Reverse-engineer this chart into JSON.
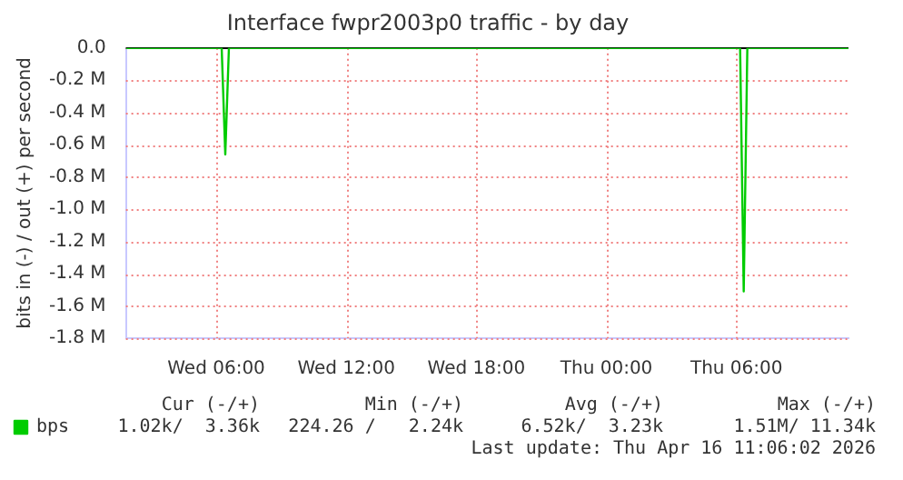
{
  "chart_data": {
    "type": "line",
    "title": "Interface fwpr2003p0 traffic - by day",
    "ylabel": "bits in (-) / out (+) per second",
    "x": [
      "2026-04-15T01:50",
      "2026-04-15T06:15",
      "2026-04-15T06:25",
      "2026-04-15T06:35",
      "2026-04-16T06:10",
      "2026-04-16T06:20",
      "2026-04-16T06:30",
      "2026-04-16T11:10"
    ],
    "series": [
      {
        "name": "bps",
        "color": "#00cc00",
        "values": [
          0,
          0,
          -0.66,
          0,
          0,
          -1.51,
          0,
          0
        ]
      }
    ],
    "xlim": [
      "2026-04-15T01:50",
      "2026-04-16T11:10"
    ],
    "xticks": [
      {
        "value": "2026-04-15T06:00",
        "label": "Wed 06:00"
      },
      {
        "value": "2026-04-15T12:00",
        "label": "Wed 12:00"
      },
      {
        "value": "2026-04-15T18:00",
        "label": "Wed 18:00"
      },
      {
        "value": "2026-04-16T00:00",
        "label": "Thu 00:00"
      },
      {
        "value": "2026-04-16T06:00",
        "label": "Thu 06:00"
      }
    ],
    "ylim": [
      -1.8,
      0
    ],
    "yticks": [
      {
        "value": 0,
        "label": "0.0"
      },
      {
        "value": -0.2,
        "label": "-0.2 M"
      },
      {
        "value": -0.4,
        "label": "-0.4 M"
      },
      {
        "value": -0.6,
        "label": "-0.6 M"
      },
      {
        "value": -0.8,
        "label": "-0.8 M"
      },
      {
        "value": -1.0,
        "label": "-1.0 M"
      },
      {
        "value": -1.2,
        "label": "-1.2 M"
      },
      {
        "value": -1.4,
        "label": "-1.4 M"
      },
      {
        "value": -1.6,
        "label": "-1.6 M"
      },
      {
        "value": -1.8,
        "label": "-1.8 M"
      }
    ],
    "grid": true,
    "legend": "bottom left",
    "marker": "none",
    "line_style": "solid",
    "annotations": [
      "Cur (-/+)",
      "Min (-/+)",
      "Avg (-/+)",
      "Max (-/+)",
      "1.02k/  3.36k",
      "224.26 /   2.24k",
      "6.52k/  3.23k",
      "1.51M/ 11.34k",
      "Last update: Thu Apr 16 11:06:02 2026"
    ]
  }
}
